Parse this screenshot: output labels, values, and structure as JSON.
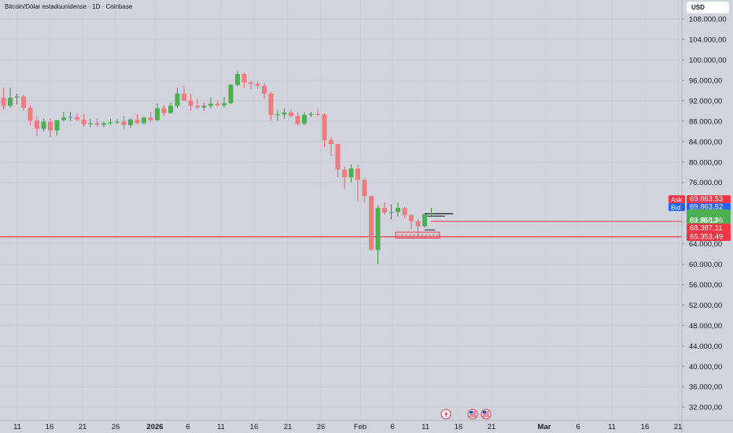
{
  "header": {
    "symbol_title": "Bitcoin/Dólar estadounidense · 1D · Coinbase",
    "currency": "USD"
  },
  "colors": {
    "background": "#d1d4dc",
    "up": "#4caf50",
    "down": "#f07c80",
    "down_dark": "#e8565b",
    "line_red": "#f23645",
    "ask": "#f23645",
    "bid": "#2962ff"
  },
  "price_tags": {
    "ask_label": "Ask",
    "ask_value": "69.863,53",
    "bid_label": "Bid",
    "bid_value": "69.863,52",
    "last_value": "69.858,36",
    "countdown": "03:36:13",
    "line1_value": "68.387,11",
    "line2_value": "65.353,49"
  },
  "event_icons": [
    "lightning-icon",
    "us-flag-icon",
    "us-flag-icon"
  ],
  "chart_data": {
    "type": "candlestick",
    "title": "Bitcoin/Dólar estadounidense · 1D · Coinbase",
    "y_axis": {
      "ticks": [
        108000,
        104000,
        100000,
        96000,
        92000,
        88000,
        84000,
        80000,
        76000,
        64000,
        60000,
        56000,
        52000,
        48000,
        44000,
        40000,
        36000,
        32000
      ],
      "tick_labels": [
        "108.000,00",
        "104.000,00",
        "100.000,00",
        "96.000,00",
        "92.000,00",
        "88.000,00",
        "84.000,00",
        "80.000,00",
        "76.000,00",
        "64.000,00",
        "60.000,00",
        "56.000,00",
        "52.000,00",
        "48.000,00",
        "44.000,00",
        "40.000,00",
        "36.000,00",
        "32.000,00"
      ]
    },
    "x_axis": {
      "labels": [
        "11",
        "16",
        "21",
        "26",
        "2026",
        "6",
        "11",
        "16",
        "21",
        "26",
        "Feb",
        "6",
        "11",
        "16",
        "21",
        "Mar",
        "6",
        "11",
        "16",
        "21"
      ],
      "bold_labels": [
        "2026",
        "Mar"
      ]
    },
    "horizontal_lines": [
      68387.11,
      65353.49
    ],
    "candles": [
      {
        "o": 92600,
        "h": 94500,
        "l": 90300,
        "c": 91000
      },
      {
        "o": 91000,
        "h": 94500,
        "l": 90700,
        "c": 92600
      },
      {
        "o": 92600,
        "h": 93400,
        "l": 91300,
        "c": 92800
      },
      {
        "o": 92800,
        "h": 93200,
        "l": 90000,
        "c": 90600
      },
      {
        "o": 90600,
        "h": 91100,
        "l": 87200,
        "c": 88100
      },
      {
        "o": 88100,
        "h": 88900,
        "l": 85100,
        "c": 86500
      },
      {
        "o": 86500,
        "h": 88500,
        "l": 86000,
        "c": 87900
      },
      {
        "o": 87900,
        "h": 88600,
        "l": 84900,
        "c": 86200
      },
      {
        "o": 86200,
        "h": 88000,
        "l": 85200,
        "c": 88200
      },
      {
        "o": 88200,
        "h": 89800,
        "l": 87900,
        "c": 88700
      },
      {
        "o": 88700,
        "h": 89800,
        "l": 88000,
        "c": 88800
      },
      {
        "o": 88800,
        "h": 89500,
        "l": 88000,
        "c": 88300
      },
      {
        "o": 88300,
        "h": 89400,
        "l": 86900,
        "c": 87400
      },
      {
        "o": 87400,
        "h": 88400,
        "l": 86800,
        "c": 87600
      },
      {
        "o": 87600,
        "h": 88600,
        "l": 87000,
        "c": 87300
      },
      {
        "o": 87300,
        "h": 87900,
        "l": 86800,
        "c": 87600
      },
      {
        "o": 87600,
        "h": 88400,
        "l": 87300,
        "c": 87800
      },
      {
        "o": 87800,
        "h": 88400,
        "l": 87500,
        "c": 87900
      },
      {
        "o": 87900,
        "h": 89000,
        "l": 86400,
        "c": 87200
      },
      {
        "o": 87200,
        "h": 88600,
        "l": 86700,
        "c": 88300
      },
      {
        "o": 88300,
        "h": 89400,
        "l": 87400,
        "c": 87600
      },
      {
        "o": 87600,
        "h": 88800,
        "l": 87300,
        "c": 88700
      },
      {
        "o": 88700,
        "h": 89800,
        "l": 87800,
        "c": 88200
      },
      {
        "o": 88200,
        "h": 91500,
        "l": 88000,
        "c": 90500
      },
      {
        "o": 90500,
        "h": 91200,
        "l": 89000,
        "c": 89600
      },
      {
        "o": 89600,
        "h": 91600,
        "l": 89400,
        "c": 91000
      },
      {
        "o": 91000,
        "h": 94500,
        "l": 90500,
        "c": 93400
      },
      {
        "o": 93400,
        "h": 94900,
        "l": 91900,
        "c": 92000
      },
      {
        "o": 92000,
        "h": 93400,
        "l": 90000,
        "c": 91000
      },
      {
        "o": 91000,
        "h": 92400,
        "l": 90300,
        "c": 90700
      },
      {
        "o": 90700,
        "h": 91600,
        "l": 90000,
        "c": 91000
      },
      {
        "o": 91000,
        "h": 92600,
        "l": 90500,
        "c": 91400
      },
      {
        "o": 91400,
        "h": 92000,
        "l": 90800,
        "c": 91100
      },
      {
        "o": 91100,
        "h": 92700,
        "l": 90600,
        "c": 91500
      },
      {
        "o": 91500,
        "h": 95300,
        "l": 91400,
        "c": 95100
      },
      {
        "o": 95100,
        "h": 97800,
        "l": 94800,
        "c": 97200
      },
      {
        "o": 97200,
        "h": 97500,
        "l": 94500,
        "c": 95600
      },
      {
        "o": 95600,
        "h": 95900,
        "l": 94200,
        "c": 95300
      },
      {
        "o": 95300,
        "h": 95700,
        "l": 94300,
        "c": 94900
      },
      {
        "o": 94900,
        "h": 95500,
        "l": 92400,
        "c": 93400
      },
      {
        "o": 93400,
        "h": 93700,
        "l": 88000,
        "c": 89200
      },
      {
        "o": 89200,
        "h": 90100,
        "l": 88000,
        "c": 89300
      },
      {
        "o": 89300,
        "h": 90500,
        "l": 88500,
        "c": 89700
      },
      {
        "o": 89700,
        "h": 90400,
        "l": 88800,
        "c": 89000
      },
      {
        "o": 89000,
        "h": 89600,
        "l": 87200,
        "c": 87500
      },
      {
        "o": 87500,
        "h": 89700,
        "l": 87200,
        "c": 89200
      },
      {
        "o": 89200,
        "h": 89800,
        "l": 88800,
        "c": 89400
      },
      {
        "o": 89400,
        "h": 90400,
        "l": 89000,
        "c": 89300
      },
      {
        "o": 89300,
        "h": 89500,
        "l": 82900,
        "c": 84300
      },
      {
        "o": 84300,
        "h": 84900,
        "l": 81200,
        "c": 83500
      },
      {
        "o": 83500,
        "h": 83600,
        "l": 77000,
        "c": 78500
      },
      {
        "o": 78500,
        "h": 79100,
        "l": 74700,
        "c": 77000
      },
      {
        "o": 77000,
        "h": 79500,
        "l": 76000,
        "c": 78700
      },
      {
        "o": 78700,
        "h": 79400,
        "l": 72300,
        "c": 76500
      },
      {
        "o": 76500,
        "h": 76800,
        "l": 72200,
        "c": 73300
      },
      {
        "o": 73300,
        "h": 73500,
        "l": 62700,
        "c": 62800
      },
      {
        "o": 62800,
        "h": 71500,
        "l": 60000,
        "c": 71000
      },
      {
        "o": 71000,
        "h": 72200,
        "l": 69700,
        "c": 70100
      },
      {
        "o": 70100,
        "h": 71700,
        "l": 68800,
        "c": 70200
      },
      {
        "o": 70200,
        "h": 72000,
        "l": 69300,
        "c": 71000
      },
      {
        "o": 71000,
        "h": 71200,
        "l": 69000,
        "c": 69600
      },
      {
        "o": 69600,
        "h": 69800,
        "l": 66800,
        "c": 68400
      },
      {
        "o": 68400,
        "h": 68900,
        "l": 65400,
        "c": 67400
      },
      {
        "o": 67400,
        "h": 69900,
        "l": 67200,
        "c": 69800
      },
      {
        "o": 69800,
        "h": 71000,
        "l": 69600,
        "c": 69858
      }
    ]
  }
}
